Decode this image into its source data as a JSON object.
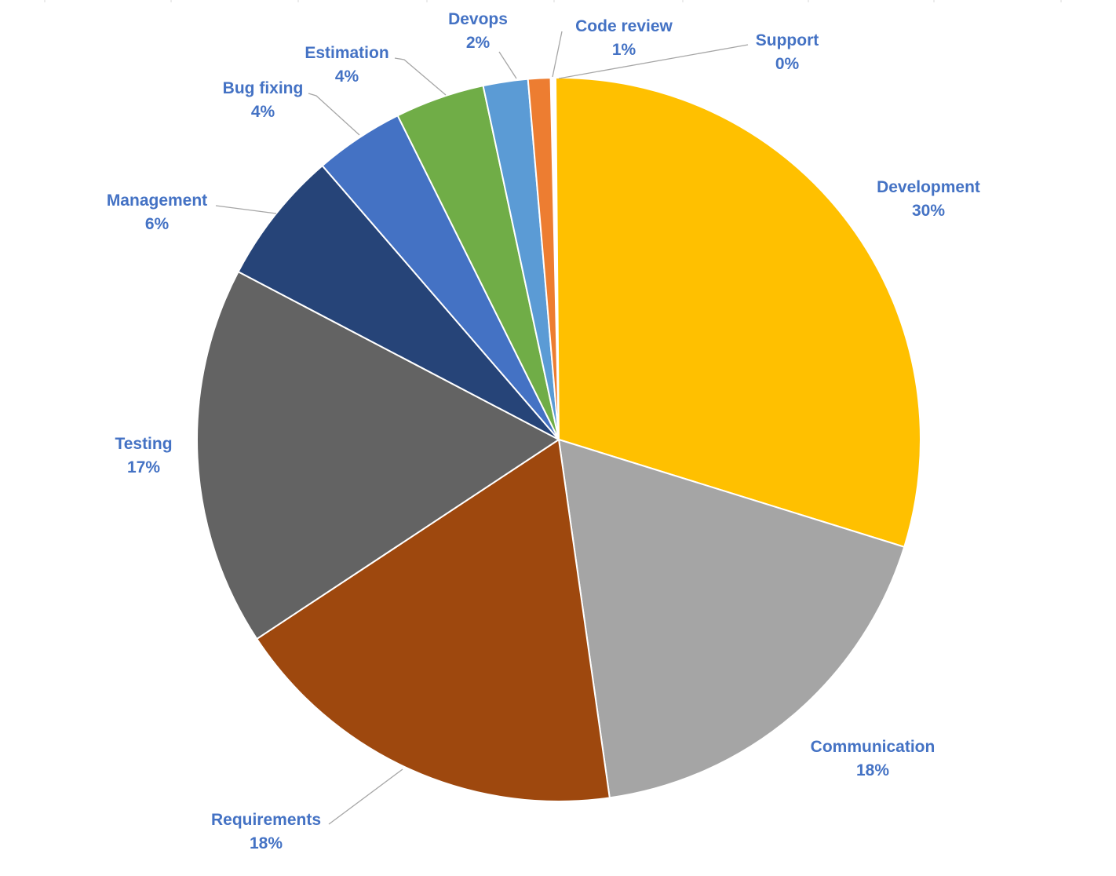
{
  "chart_data": {
    "type": "pie",
    "title": "",
    "label_color": "#4472c4",
    "slices": [
      {
        "name": "Development",
        "value": 30,
        "label": "30%",
        "color": "#ffc000"
      },
      {
        "name": "Communication",
        "value": 18,
        "label": "18%",
        "color": "#a5a5a5"
      },
      {
        "name": "Requirements",
        "value": 18,
        "label": "18%",
        "color": "#9e480e"
      },
      {
        "name": "Testing",
        "value": 17,
        "label": "17%",
        "color": "#636363"
      },
      {
        "name": "Management",
        "value": 6,
        "label": "6%",
        "color": "#264478"
      },
      {
        "name": "Bug fixing",
        "value": 4,
        "label": "4%",
        "color": "#4472c4"
      },
      {
        "name": "Estimation",
        "value": 4,
        "label": "4%",
        "color": "#70ad47"
      },
      {
        "name": "Devops",
        "value": 2,
        "label": "2%",
        "color": "#5b9bd5"
      },
      {
        "name": "Code review",
        "value": 1,
        "label": "1%",
        "color": "#ed7d31"
      },
      {
        "name": "Support",
        "value": 0,
        "label": "0%",
        "color": "#c00000"
      }
    ]
  }
}
